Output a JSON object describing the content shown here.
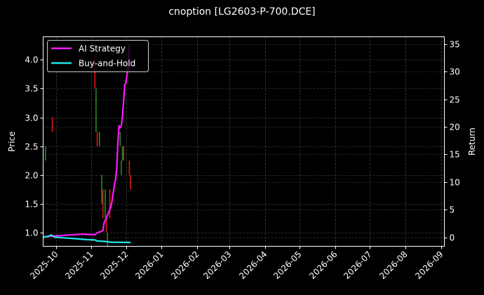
{
  "title": "cnoption [LG2603-P-700.DCE]",
  "chart_data": {
    "type": "line",
    "title": "cnoption [LG2603-P-700.DCE]",
    "xlabel": "",
    "ylabel": "Price",
    "ylabel_right": "Return",
    "grid": true,
    "legend_position": "upper left",
    "background": "#000000",
    "x_ticks": [
      "2025-10",
      "2025-11",
      "2025-12",
      "2026-01",
      "2026-02",
      "2026-03",
      "2026-04",
      "2026-05",
      "2026-06",
      "2026-07",
      "2026-08",
      "2026-09"
    ],
    "y_ticks_left": [
      "1.0",
      "1.5",
      "2.0",
      "2.5",
      "3.0",
      "3.5",
      "4.0"
    ],
    "y_ticks_right": [
      "0",
      "5",
      "10",
      "15",
      "20",
      "25",
      "30",
      "35"
    ],
    "ylim_left": [
      0.76,
      4.4
    ],
    "ylim_right": [
      -1.65,
      36.3
    ],
    "xlim": [
      "2025-09-20",
      "2026-09-04"
    ],
    "series": [
      {
        "name": "AI Strategy",
        "color": "#ff19ff",
        "axis": "right",
        "points": [
          [
            "2025-09-20",
            0.0
          ],
          [
            "2025-09-28",
            0.2
          ],
          [
            "2025-10-10",
            0.35
          ],
          [
            "2025-10-24",
            0.55
          ],
          [
            "2025-10-29",
            0.5
          ],
          [
            "2025-11-04",
            0.45
          ],
          [
            "2025-11-06",
            0.8
          ],
          [
            "2025-11-09",
            1.0
          ],
          [
            "2025-11-11",
            1.2
          ],
          [
            "2025-11-12",
            2.6
          ],
          [
            "2025-11-14",
            3.5
          ],
          [
            "2025-11-16",
            4.5
          ],
          [
            "2025-11-18",
            5.5
          ],
          [
            "2025-11-19",
            6.6
          ],
          [
            "2025-11-21",
            9.5
          ],
          [
            "2025-11-22",
            10.5
          ],
          [
            "2025-11-23",
            12.3
          ],
          [
            "2025-11-24",
            17.0
          ],
          [
            "2025-11-25",
            20.2
          ],
          [
            "2025-11-26",
            19.8
          ],
          [
            "2025-11-27",
            20.1
          ],
          [
            "2025-11-28",
            22.0
          ],
          [
            "2025-11-30",
            27.6
          ],
          [
            "2025-12-01",
            28.0
          ],
          [
            "2025-12-03",
            31.0
          ],
          [
            "2025-12-04",
            35.0
          ]
        ]
      },
      {
        "name": "Buy-and-Hold",
        "color": "#1ee6e6",
        "axis": "right",
        "points": [
          [
            "2025-09-20",
            0.0
          ],
          [
            "2025-09-25",
            0.2
          ],
          [
            "2025-09-27",
            0.4
          ],
          [
            "2025-09-30",
            0.0
          ],
          [
            "2025-10-10",
            -0.15
          ],
          [
            "2025-10-20",
            -0.3
          ],
          [
            "2025-10-28",
            -0.45
          ],
          [
            "2025-11-04",
            -0.5
          ],
          [
            "2025-11-06",
            -0.7
          ],
          [
            "2025-11-12",
            -0.75
          ],
          [
            "2025-11-18",
            -0.9
          ],
          [
            "2025-12-05",
            -0.95
          ]
        ]
      }
    ],
    "candles": {
      "up_color": "#228b22",
      "down_color": "#dd1a1a",
      "axis": "left",
      "items": [
        {
          "date": "2025-09-22",
          "dir": "up",
          "low": 2.25,
          "high": 2.5
        },
        {
          "date": "2025-09-28",
          "dir": "down",
          "low": 2.75,
          "high": 3.0
        },
        {
          "date": "2025-11-04",
          "dir": "down",
          "low": 3.5,
          "high": 4.1
        },
        {
          "date": "2025-11-05",
          "dir": "up",
          "low": 2.75,
          "high": 3.5
        },
        {
          "date": "2025-11-06",
          "dir": "down",
          "low": 2.5,
          "high": 2.75
        },
        {
          "date": "2025-11-08",
          "dir": "up",
          "low": 2.5,
          "high": 2.75
        },
        {
          "date": "2025-11-10",
          "dir": "up",
          "low": 1.5,
          "high": 2.0
        },
        {
          "date": "2025-11-11",
          "dir": "down",
          "low": 1.25,
          "high": 1.75
        },
        {
          "date": "2025-11-13",
          "dir": "up",
          "low": 1.25,
          "high": 1.75
        },
        {
          "date": "2025-11-14",
          "dir": "down",
          "low": 1.0,
          "high": 1.25
        },
        {
          "date": "2025-11-15",
          "dir": "up",
          "low": 0.76,
          "high": 1.0
        },
        {
          "date": "2025-11-17",
          "dir": "down",
          "low": 1.25,
          "high": 1.75
        },
        {
          "date": "2025-11-26",
          "dir": "up",
          "low": 2.5,
          "high": 2.75
        },
        {
          "date": "2025-11-27",
          "dir": "up",
          "low": 2.0,
          "high": 2.25
        },
        {
          "date": "2025-11-28",
          "dir": "up",
          "low": 2.25,
          "high": 2.5
        },
        {
          "date": "2025-11-29",
          "dir": "down",
          "low": 2.25,
          "high": 2.5
        },
        {
          "date": "2025-12-04",
          "dir": "down",
          "low": 2.0,
          "high": 2.25
        },
        {
          "date": "2025-12-05",
          "dir": "down",
          "low": 1.75,
          "high": 2.0
        }
      ]
    }
  }
}
